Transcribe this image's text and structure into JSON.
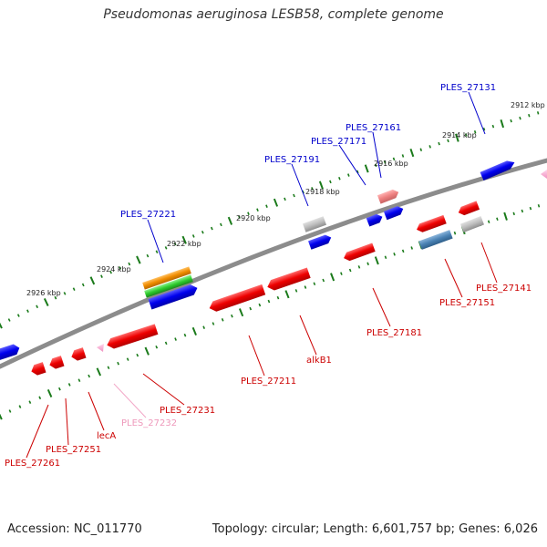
{
  "title": "Pseudomonas aeruginosa LESB58, complete genome",
  "footer": {
    "accession": "Accession: NC_011770",
    "summary": "Topology: circular; Length: 6,601,757 bp; Genes: 6,026"
  },
  "colors": {
    "backbone": "#8c8c8c",
    "ticks": "#1a7a1a",
    "forward_label": "#0000cc",
    "reverse_label": "#cc0000",
    "pseudo_label": "#ee99bb"
  },
  "ruler_labels": [
    {
      "text": "2912 kbp",
      "kbp": 2912
    },
    {
      "text": "2914 kbp",
      "kbp": 2914
    },
    {
      "text": "2916 kbp",
      "kbp": 2916
    },
    {
      "text": "2918 kbp",
      "kbp": 2918
    },
    {
      "text": "2920 kbp",
      "kbp": 2920
    },
    {
      "text": "2922 kbp",
      "kbp": 2922
    },
    {
      "text": "2924 kbp",
      "kbp": 2924
    },
    {
      "text": "2926 kbp",
      "kbp": 2926
    }
  ],
  "gene_labels": [
    {
      "text": "PLES_27131",
      "strand": "forward"
    },
    {
      "text": "PLES_27161",
      "strand": "forward"
    },
    {
      "text": "PLES_27171",
      "strand": "forward"
    },
    {
      "text": "PLES_27191",
      "strand": "forward"
    },
    {
      "text": "PLES_27221",
      "strand": "forward"
    },
    {
      "text": "PLES_27141",
      "strand": "reverse"
    },
    {
      "text": "PLES_27151",
      "strand": "reverse"
    },
    {
      "text": "PLES_27181",
      "strand": "reverse"
    },
    {
      "text": "alkB1",
      "strand": "reverse"
    },
    {
      "text": "PLES_27211",
      "strand": "reverse"
    },
    {
      "text": "PLES_27231",
      "strand": "reverse"
    },
    {
      "text": "PLES_27232",
      "strand": "pseudo"
    },
    {
      "text": "lecA",
      "strand": "reverse"
    },
    {
      "text": "PLES_27251",
      "strand": "reverse"
    },
    {
      "text": "PLES_27261",
      "strand": "reverse"
    }
  ]
}
